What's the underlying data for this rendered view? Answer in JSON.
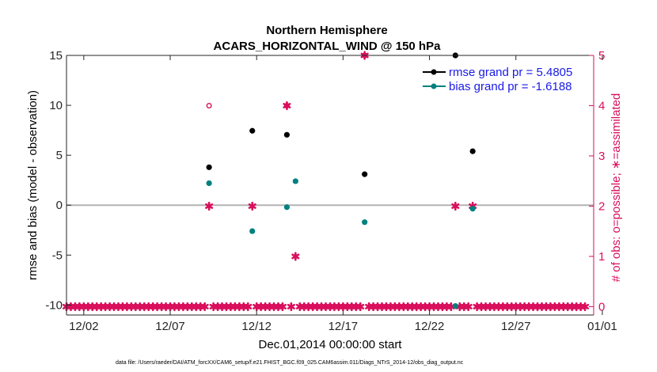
{
  "chart_data": {
    "type": "scatter",
    "title": "Northern Hemisphere",
    "subtitle": "ACARS_HORIZONTAL_WIND @ 150 hPa",
    "xlabel": "Dec.01,2014 00:00:00 start",
    "ylabel_left": "rmse and bias (model - observation)",
    "ylabel_right": "# of obs: o=possible; ∗=assimilated",
    "footer": "data file: /Users/raeder/DAI/ATM_forcXX/CAM6_setup/f.e21.FHIST_BGC.f09_025.CAM6assim.011/Diags_NTrS_2014-12/obs_diag_output.nc",
    "x_domain": [
      0,
      30.5
    ],
    "x_ticks": [
      {
        "x": 1,
        "label": "12/02"
      },
      {
        "x": 6,
        "label": "12/07"
      },
      {
        "x": 11,
        "label": "12/12"
      },
      {
        "x": 16,
        "label": "12/17"
      },
      {
        "x": 21,
        "label": "12/22"
      },
      {
        "x": 26,
        "label": "12/27"
      },
      {
        "x": 31,
        "label": "01/01"
      }
    ],
    "ylim_left": [
      -11,
      15
    ],
    "yticks_left": [
      -10,
      -5,
      0,
      5,
      10,
      15
    ],
    "ylim_right": [
      -0.1667,
      5
    ],
    "yticks_right": [
      0,
      1,
      2,
      3,
      4,
      5
    ],
    "colors": {
      "rmse": "#000000",
      "bias": "#008080",
      "obs": "#d90f5c",
      "zero_line": "#b3b3b3",
      "legend_text": "#1a1ae6"
    },
    "legend": [
      {
        "key": "rmse",
        "label": "rmse grand pr = 5.4805"
      },
      {
        "key": "bias",
        "label": "bias grand pr = -1.6188"
      }
    ],
    "series": [
      {
        "name": "rmse",
        "x": [
          8.25,
          10.75,
          12.75,
          17.25,
          22.5,
          23.5
        ],
        "y": [
          3.8,
          7.45,
          7.05,
          3.1,
          15.0,
          5.4
        ]
      },
      {
        "name": "bias",
        "x": [
          8.25,
          10.75,
          12.75,
          13.25,
          17.25,
          22.5,
          23.5
        ],
        "y": [
          2.2,
          -2.6,
          -0.2,
          2.4,
          -1.7,
          -10.1,
          -0.35
        ]
      },
      {
        "name": "obs_possible",
        "x": [
          8.25,
          12.75,
          17.25,
          22.5
        ],
        "y": [
          4,
          4,
          5,
          5
        ]
      },
      {
        "name": "obs_assimilated_nonzero",
        "x": [
          8.25,
          10.75,
          12.75,
          13.25,
          17.25,
          22.5,
          23.5
        ],
        "y": [
          2,
          2,
          4,
          1,
          5,
          2,
          2
        ]
      }
    ]
  }
}
